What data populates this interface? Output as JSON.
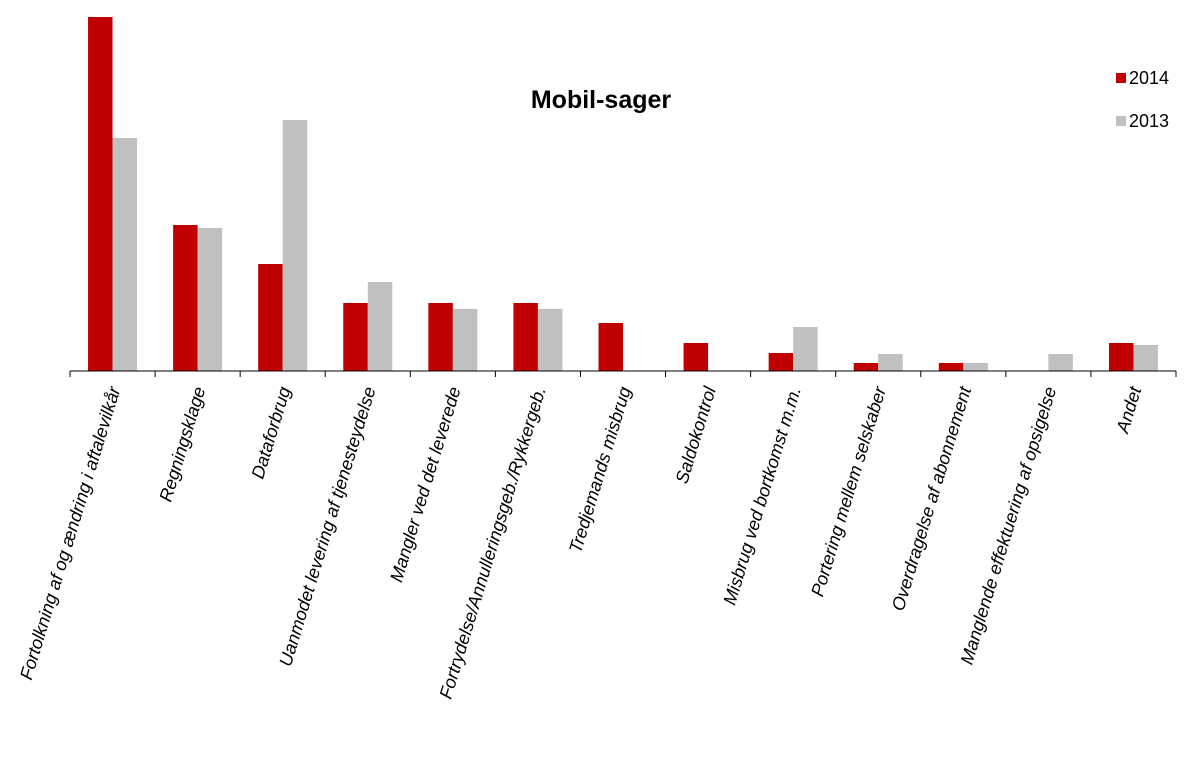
{
  "chart_data": {
    "type": "bar",
    "title": "Mobil-sager",
    "xlabel": "",
    "ylabel": "",
    "categories": [
      "Fortolkning af og ændring i aftalevilkår",
      "Regningsklage",
      "Dataforbrug",
      "Uanmodet levering af tjenesteydelse",
      "Mangler ved det leverede",
      "Fortrydelse/Annulleringsgeb./Rykkergeb.",
      "Tredjemands misbrug",
      "Saldokontrol",
      "Misbrug ved bortkomst m.m.",
      "Portering mellem selskaber",
      "Overdragelse af abonnement",
      "Manglende effektuering af opsigelse",
      "Andet"
    ],
    "series": [
      {
        "name": "2014",
        "color": "#c00000",
        "values": [
          354,
          146,
          107,
          68,
          68,
          68,
          48,
          28,
          18,
          8,
          8,
          0,
          28
        ]
      },
      {
        "name": "2013",
        "color": "#c0c0c0",
        "values": [
          233,
          143,
          251,
          89,
          62,
          62,
          0,
          0,
          44,
          17,
          8,
          17,
          26
        ]
      }
    ],
    "ylim": [
      0,
      354
    ],
    "grid": false,
    "legend": "top-right"
  }
}
